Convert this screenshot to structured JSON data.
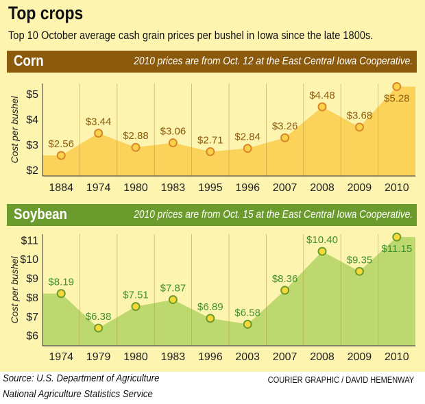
{
  "title": "Top crops",
  "subtitle": "Top 10 October average cash grain prices per bushel in Iowa since the late 1800s.",
  "chart_data": [
    {
      "type": "area",
      "title": "Corn",
      "note": "2010 prices are from Oct. 12 at the East Central Iowa Cooperative.",
      "ylabel": "Cost per bushel",
      "categories": [
        "1884",
        "1974",
        "1980",
        "1983",
        "1995",
        "1996",
        "2007",
        "2008",
        "2009",
        "2010"
      ],
      "values": [
        2.56,
        3.44,
        2.88,
        3.06,
        2.71,
        2.84,
        3.26,
        4.48,
        3.68,
        5.28
      ],
      "data_labels": [
        "$2.56",
        "$3.44",
        "$2.88",
        "$3.06",
        "$2.71",
        "$2.84",
        "$3.26",
        "$4.48",
        "$3.68",
        "$5.28"
      ],
      "yticks": [
        "$2",
        "$3",
        "$4",
        "$5"
      ],
      "ytick_values": [
        2,
        3,
        4,
        5
      ],
      "ylim": [
        1.75,
        5.4
      ],
      "colors": {
        "header": "#8c5a0c",
        "area": "#fbd25a",
        "line": "#f0c23a",
        "point_fill": "#f9d24a",
        "point_stroke": "#d9862a",
        "label": "#8c5a0c"
      }
    },
    {
      "type": "area",
      "title": "Soybean",
      "note": "2010 prices are from Oct. 15 at the East Central Iowa Cooperative.",
      "ylabel": "Cost per bushel",
      "categories": [
        "1974",
        "1979",
        "1980",
        "1983",
        "1996",
        "2003",
        "2007",
        "2008",
        "2009",
        "2010"
      ],
      "values": [
        8.19,
        6.38,
        7.51,
        7.87,
        6.89,
        6.58,
        8.36,
        10.4,
        9.35,
        11.15
      ],
      "data_labels": [
        "$8.19",
        "$6.38",
        "$7.51",
        "$7.87",
        "$6.89",
        "$6.58",
        "$8.36",
        "$10.40",
        "$9.35",
        "$11.15"
      ],
      "yticks": [
        "$6",
        "$7",
        "$8",
        "$9",
        "$10",
        "$11"
      ],
      "ytick_values": [
        6,
        7,
        8,
        9,
        10,
        11
      ],
      "ylim": [
        5.45,
        11.3
      ],
      "colors": {
        "header": "#6b9b2c",
        "area": "#bcd86e",
        "line": "#a9c95a",
        "point_fill": "#f6d838",
        "point_stroke": "#6b9b2c",
        "label": "#3f8f2f"
      }
    }
  ],
  "footer": {
    "source_line1": "Source: U.S. Department of Agriculture",
    "source_line2": "National Agriculture Statistics Service",
    "credit": "COURIER GRAPHIC / DAVID HEMENWAY"
  }
}
